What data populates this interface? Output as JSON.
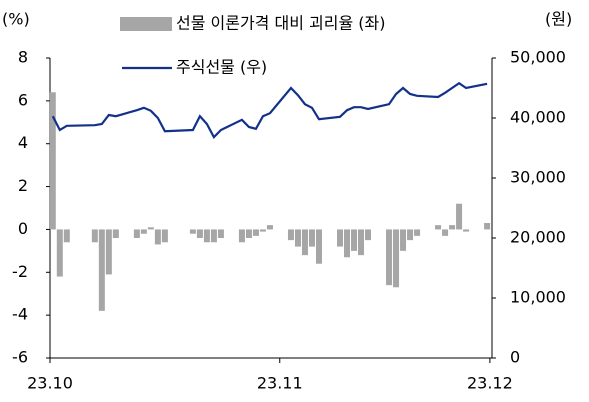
{
  "chart_data": {
    "type": "bar-line",
    "y_axis_label": "(%)",
    "y2_axis_label": "(원)",
    "x": [
      0,
      1,
      2,
      6,
      7,
      8,
      9,
      12,
      13,
      14,
      15,
      16,
      20,
      21,
      22,
      23,
      24,
      27,
      28,
      29,
      30,
      31,
      34,
      35,
      36,
      37,
      38,
      41,
      42,
      43,
      44,
      45,
      48,
      49,
      50,
      51,
      52,
      55,
      56,
      57,
      58,
      59,
      62
    ],
    "xlim": [
      -0.4,
      62.7
    ],
    "xticks": [
      {
        "value": -0.4,
        "label": "23.10"
      },
      {
        "value": 32.4,
        "label": "23.11"
      },
      {
        "value": 62.4,
        "label": "23.12"
      }
    ],
    "ylim": [
      -6,
      8
    ],
    "yticks": [
      -6,
      -4,
      -2,
      0,
      2,
      4,
      6,
      8
    ],
    "y2lim": [
      0,
      50000
    ],
    "y2ticks": [
      0,
      {
        "value": 10000,
        "label": "10,000"
      },
      {
        "value": 20000,
        "label": "20,000"
      },
      {
        "value": 30000,
        "label": "30,000"
      },
      {
        "value": 40000,
        "label": "40,000"
      },
      {
        "value": 50000,
        "label": "50,000"
      }
    ],
    "series": [
      {
        "name": "선물 이론가격 대비 괴리율 (좌)",
        "type": "bar",
        "color": "#a6a6a6",
        "axis": "y",
        "values": [
          6.4,
          -2.2,
          -0.6,
          -0.6,
          -3.8,
          -2.1,
          -0.4,
          -0.4,
          -0.2,
          0.1,
          -0.7,
          -0.6,
          -0.2,
          -0.4,
          -0.6,
          -0.6,
          -0.4,
          -0.6,
          -0.4,
          -0.3,
          -0.1,
          0.2,
          -0.5,
          -0.8,
          -1.2,
          -0.8,
          -1.6,
          -0.8,
          -1.3,
          -1.0,
          -1.2,
          -0.5,
          -2.6,
          -2.7,
          -1.0,
          -0.5,
          -0.3,
          0.2,
          -0.3,
          0.2,
          1.2,
          -0.1,
          0.3
        ]
      },
      {
        "name": "주식선물 (우)",
        "type": "line",
        "color": "#13318a",
        "axis": "y2",
        "values": [
          40300,
          38000,
          38700,
          38800,
          39000,
          40500,
          40300,
          41300,
          41700,
          41200,
          40000,
          37800,
          38000,
          40300,
          39000,
          36800,
          38000,
          39700,
          38500,
          38200,
          40300,
          40800,
          45000,
          43800,
          42300,
          41700,
          39800,
          40200,
          41300,
          41800,
          41800,
          41500,
          42300,
          44000,
          45000,
          44000,
          43700,
          43500,
          44200,
          45000,
          45800,
          45000,
          45700
        ]
      }
    ]
  }
}
